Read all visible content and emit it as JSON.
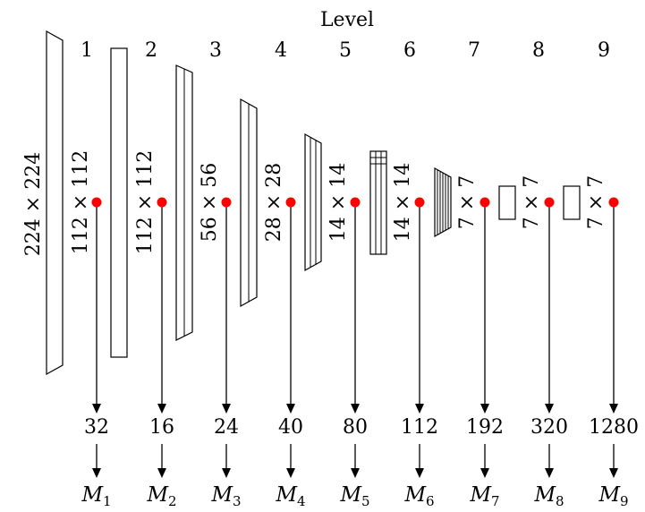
{
  "title": "Level",
  "input_label": "224 × 224",
  "levels": [
    {
      "level": "1",
      "size_label": "112 × 112",
      "channels": "32",
      "model": "M",
      "model_sub": "1"
    },
    {
      "level": "2",
      "size_label": "112 × 112",
      "channels": "16",
      "model": "M",
      "model_sub": "2"
    },
    {
      "level": "3",
      "size_label": "56 × 56",
      "channels": "24",
      "model": "M",
      "model_sub": "3"
    },
    {
      "level": "4",
      "size_label": "28 × 28",
      "channels": "40",
      "model": "M",
      "model_sub": "4"
    },
    {
      "level": "5",
      "size_label": "14 × 14",
      "channels": "80",
      "model": "M",
      "model_sub": "5"
    },
    {
      "level": "6",
      "size_label": "14 × 14",
      "channels": "112",
      "model": "M",
      "model_sub": "6"
    },
    {
      "level": "7",
      "size_label": "7 × 7",
      "channels": "192",
      "model": "M",
      "model_sub": "7"
    },
    {
      "level": "8",
      "size_label": "7 × 7",
      "channels": "320",
      "model": "M",
      "model_sub": "8"
    },
    {
      "level": "9",
      "size_label": "7 × 7",
      "channels": "1280",
      "model": "M",
      "model_sub": "9"
    }
  ],
  "colors": {
    "tap_point": "#ff0000",
    "stroke": "#000000"
  }
}
